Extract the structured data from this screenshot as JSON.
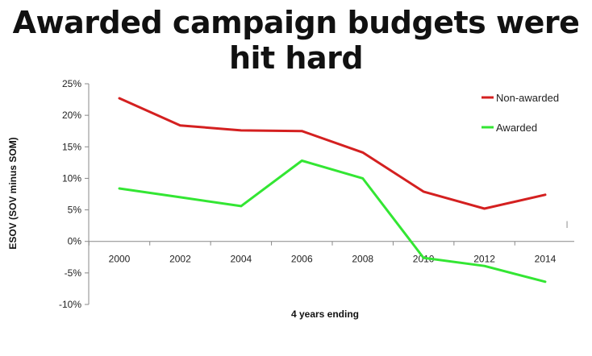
{
  "slide": {
    "title": "Awarded campaign budgets were hit hard"
  },
  "chart_data": {
    "type": "line",
    "title": "Awarded campaign budgets were hit hard",
    "xlabel": "4 years ending",
    "ylabel": "ESOV (SOV minus SOM)",
    "categories": [
      "2000",
      "2002",
      "2004",
      "2006",
      "2008",
      "2010",
      "2012",
      "2014"
    ],
    "ylim": [
      -10,
      25
    ],
    "yticks": [
      25,
      20,
      15,
      10,
      5,
      0,
      -5,
      -10
    ],
    "ytick_labels": [
      "25%",
      "20%",
      "15%",
      "10%",
      "5%",
      "0%",
      "-5%",
      "-10%"
    ],
    "legend_position": "top-right",
    "series": [
      {
        "name": "Non-awarded",
        "color": "#d42020",
        "values": [
          22.7,
          18.4,
          17.6,
          17.5,
          14.1,
          7.9,
          5.2,
          7.4
        ]
      },
      {
        "name": "Awarded",
        "color": "#33e633",
        "values": [
          8.4,
          7.0,
          5.6,
          12.8,
          10.0,
          -2.6,
          -3.9,
          -6.4
        ]
      }
    ]
  }
}
